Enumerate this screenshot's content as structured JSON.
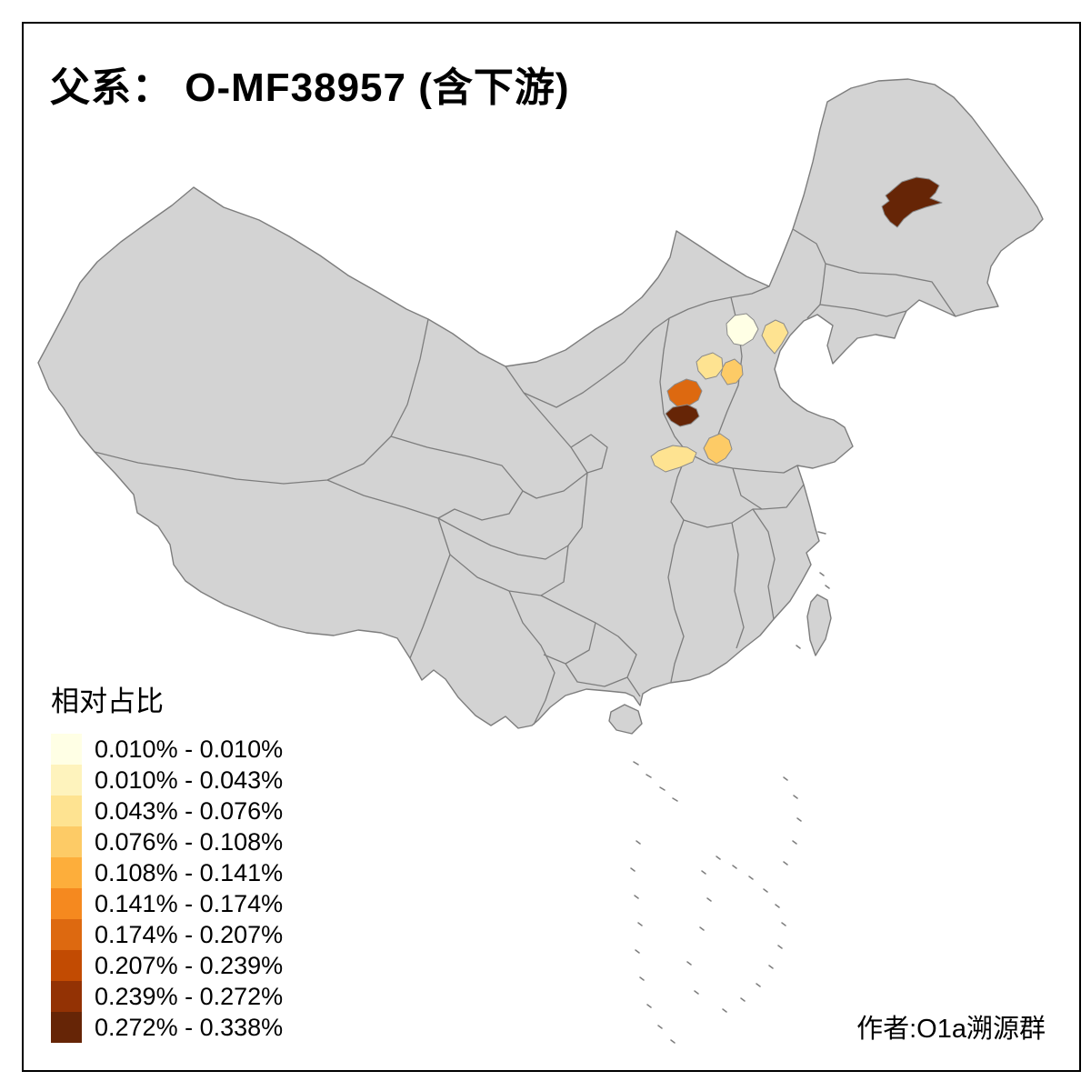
{
  "title": "父系： O-MF38957 (含下游)",
  "legend": {
    "title": "相对占比",
    "bins": [
      {
        "range": "0.010% - 0.010%",
        "color": "#FFFFE5"
      },
      {
        "range": "0.010% - 0.043%",
        "color": "#FEF3BD"
      },
      {
        "range": "0.043% - 0.076%",
        "color": "#FEE391"
      },
      {
        "range": "0.076% - 0.108%",
        "color": "#FDCB66"
      },
      {
        "range": "0.108% - 0.141%",
        "color": "#FDAE3B"
      },
      {
        "range": "0.141% - 0.174%",
        "color": "#F5891F"
      },
      {
        "range": "0.174% - 0.207%",
        "color": "#DD6910"
      },
      {
        "range": "0.207% - 0.239%",
        "color": "#C24B02"
      },
      {
        "range": "0.239% - 0.272%",
        "color": "#933204"
      },
      {
        "range": "0.272% - 0.338%",
        "color": "#662506"
      }
    ]
  },
  "attribution": "作者:O1a溯源群",
  "map": {
    "land_color": "#D3D3D3",
    "boundary_color": "#7D7D7D",
    "region_stroke": "#8A8A8A",
    "frame_color": "#000000",
    "background": "#FFFFFF",
    "regions": [
      {
        "range": "0.272% - 0.338%",
        "color": "#662506"
      },
      {
        "range": "0.010% - 0.010%",
        "color": "#FFFFE5"
      },
      {
        "range": "0.043% - 0.076%",
        "color": "#FEE391"
      },
      {
        "range": "0.043% - 0.076%",
        "color": "#FEE391"
      },
      {
        "range": "0.076% - 0.108%",
        "color": "#FDCB66"
      },
      {
        "range": "0.174% - 0.207%",
        "color": "#DD6910"
      },
      {
        "range": "0.272% - 0.338%",
        "color": "#662506"
      },
      {
        "range": "0.076% - 0.108%",
        "color": "#FDCB66"
      },
      {
        "range": "0.043% - 0.076%",
        "color": "#FEE391"
      }
    ]
  }
}
